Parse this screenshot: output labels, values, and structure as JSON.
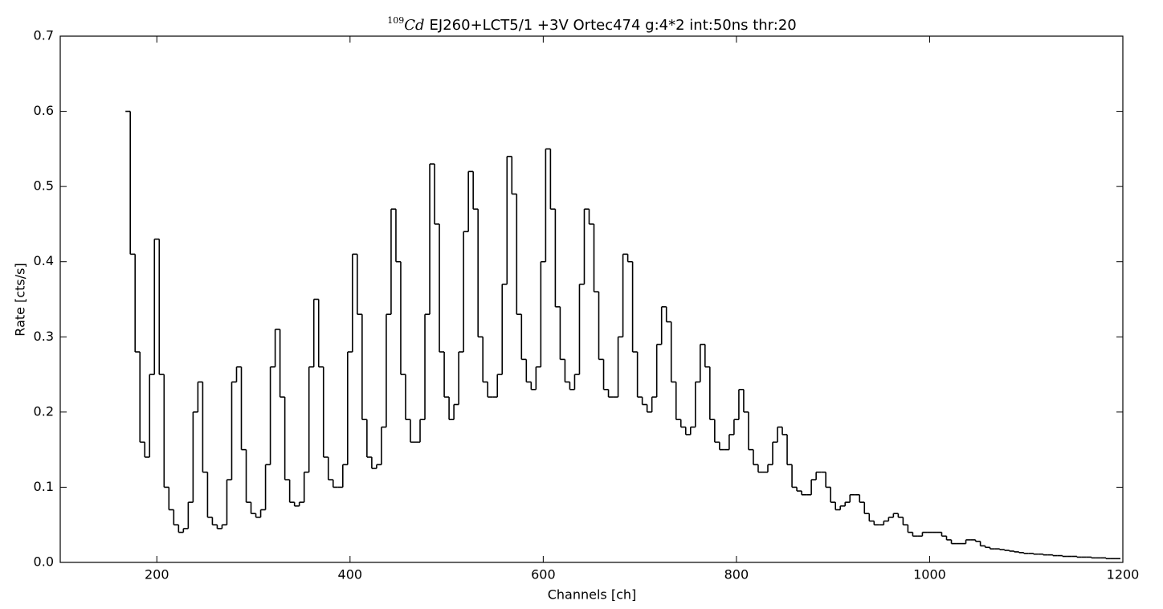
{
  "chart_data": {
    "type": "line",
    "drawstyle": "steps",
    "title_superscript": "109",
    "title_symbol": "Cd",
    "title": "EJ260+LCT5/1 +3V Ortec474 g:4*2 int:50ns thr:20",
    "xlabel": "Channels [ch]",
    "ylabel": "Rate [cts/s]",
    "xlim": [
      100,
      1200
    ],
    "ylim": [
      0,
      0.7
    ],
    "xticks": [
      200,
      400,
      600,
      800,
      1000,
      1200
    ],
    "yticks": [
      {
        "value": 0,
        "label": "0.0"
      },
      0.1,
      0.2,
      0.3,
      0.4,
      0.5,
      0.6,
      0.7
    ],
    "color": "#000000",
    "x": [
      170,
      175,
      180,
      185,
      190,
      195,
      200,
      205,
      210,
      215,
      220,
      225,
      230,
      235,
      240,
      245,
      250,
      255,
      260,
      265,
      270,
      275,
      280,
      285,
      290,
      295,
      300,
      305,
      310,
      315,
      320,
      325,
      330,
      335,
      340,
      345,
      350,
      355,
      360,
      365,
      370,
      375,
      380,
      385,
      390,
      395,
      400,
      405,
      410,
      415,
      420,
      425,
      430,
      435,
      440,
      445,
      450,
      455,
      460,
      465,
      470,
      475,
      480,
      485,
      490,
      495,
      500,
      505,
      510,
      515,
      520,
      525,
      530,
      535,
      540,
      545,
      550,
      555,
      560,
      565,
      570,
      575,
      580,
      585,
      590,
      595,
      600,
      605,
      610,
      615,
      620,
      625,
      630,
      635,
      640,
      645,
      650,
      655,
      660,
      665,
      670,
      675,
      680,
      685,
      690,
      695,
      700,
      705,
      710,
      715,
      720,
      725,
      730,
      735,
      740,
      745,
      750,
      755,
      760,
      765,
      770,
      775,
      780,
      785,
      790,
      795,
      800,
      805,
      810,
      815,
      820,
      825,
      830,
      835,
      840,
      845,
      850,
      855,
      860,
      865,
      870,
      875,
      880,
      885,
      890,
      895,
      900,
      905,
      910,
      915,
      920,
      925,
      930,
      935,
      940,
      945,
      950,
      955,
      960,
      965,
      970,
      975,
      980,
      985,
      990,
      995,
      1000,
      1005,
      1010,
      1015,
      1020,
      1025,
      1030,
      1035,
      1040,
      1045,
      1050,
      1055,
      1060,
      1065,
      1070,
      1075,
      1080,
      1085,
      1090,
      1095,
      1100,
      1105,
      1110,
      1115,
      1120,
      1125,
      1130,
      1135,
      1140,
      1145,
      1150,
      1155,
      1160,
      1165,
      1170,
      1175,
      1180,
      1185,
      1190,
      1195
    ],
    "values": [
      0.6,
      0.41,
      0.28,
      0.16,
      0.14,
      0.25,
      0.43,
      0.25,
      0.1,
      0.07,
      0.05,
      0.04,
      0.045,
      0.08,
      0.2,
      0.24,
      0.12,
      0.06,
      0.05,
      0.045,
      0.05,
      0.11,
      0.24,
      0.26,
      0.15,
      0.08,
      0.065,
      0.06,
      0.07,
      0.13,
      0.26,
      0.31,
      0.22,
      0.11,
      0.08,
      0.075,
      0.08,
      0.12,
      0.26,
      0.35,
      0.26,
      0.14,
      0.11,
      0.1,
      0.1,
      0.13,
      0.28,
      0.41,
      0.33,
      0.19,
      0.14,
      0.125,
      0.13,
      0.18,
      0.33,
      0.47,
      0.4,
      0.25,
      0.19,
      0.16,
      0.16,
      0.19,
      0.33,
      0.53,
      0.45,
      0.28,
      0.22,
      0.19,
      0.21,
      0.28,
      0.44,
      0.52,
      0.47,
      0.3,
      0.24,
      0.22,
      0.22,
      0.25,
      0.37,
      0.54,
      0.49,
      0.33,
      0.27,
      0.24,
      0.23,
      0.26,
      0.4,
      0.55,
      0.47,
      0.34,
      0.27,
      0.24,
      0.23,
      0.25,
      0.37,
      0.47,
      0.45,
      0.36,
      0.27,
      0.23,
      0.22,
      0.22,
      0.3,
      0.41,
      0.4,
      0.28,
      0.22,
      0.21,
      0.2,
      0.22,
      0.29,
      0.34,
      0.32,
      0.24,
      0.19,
      0.18,
      0.17,
      0.18,
      0.24,
      0.29,
      0.26,
      0.19,
      0.16,
      0.15,
      0.15,
      0.17,
      0.19,
      0.23,
      0.2,
      0.15,
      0.13,
      0.12,
      0.12,
      0.13,
      0.16,
      0.18,
      0.17,
      0.13,
      0.1,
      0.095,
      0.09,
      0.09,
      0.11,
      0.12,
      0.12,
      0.1,
      0.08,
      0.07,
      0.075,
      0.08,
      0.09,
      0.09,
      0.08,
      0.065,
      0.055,
      0.05,
      0.05,
      0.055,
      0.06,
      0.065,
      0.06,
      0.05,
      0.04,
      0.035,
      0.035,
      0.04,
      0.04,
      0.04,
      0.04,
      0.035,
      0.03,
      0.025,
      0.025,
      0.025,
      0.03,
      0.03,
      0.028,
      0.022,
      0.02,
      0.018,
      0.018,
      0.017,
      0.016,
      0.015,
      0.014,
      0.013,
      0.012,
      0.012,
      0.011,
      0.011,
      0.01,
      0.01,
      0.009,
      0.009,
      0.008,
      0.008,
      0.008,
      0.007,
      0.007,
      0.007,
      0.006,
      0.006,
      0.006,
      0.005,
      0.005,
      0.005
    ]
  }
}
